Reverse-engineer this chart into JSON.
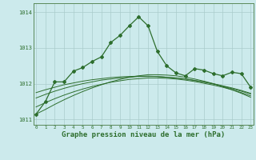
{
  "title": "Graphe pression niveau de la mer (hPa)",
  "background_color": "#cceaec",
  "grid_color": "#aacccc",
  "line_color": "#2d6e2d",
  "hours": [
    0,
    1,
    2,
    3,
    4,
    5,
    6,
    7,
    8,
    9,
    10,
    11,
    12,
    13,
    14,
    15,
    16,
    17,
    18,
    19,
    20,
    21,
    22,
    23
  ],
  "pressure_main": [
    1011.15,
    1011.5,
    1012.05,
    1012.05,
    1012.35,
    1012.45,
    1012.62,
    1012.75,
    1013.15,
    1013.35,
    1013.62,
    1013.87,
    1013.62,
    1012.9,
    1012.5,
    1012.3,
    1012.22,
    1012.42,
    1012.38,
    1012.28,
    1012.22,
    1012.32,
    1012.28,
    1011.9
  ],
  "smooth_a": [
    1011.15,
    1011.28,
    1011.42,
    1011.55,
    1011.67,
    1011.78,
    1011.88,
    1011.97,
    1012.05,
    1012.12,
    1012.18,
    1012.22,
    1012.25,
    1012.25,
    1012.24,
    1012.22,
    1012.18,
    1012.13,
    1012.07,
    1012.0,
    1011.92,
    1011.83,
    1011.73,
    1011.62
  ],
  "smooth_b": [
    1011.35,
    1011.47,
    1011.58,
    1011.68,
    1011.77,
    1011.85,
    1011.92,
    1011.98,
    1012.04,
    1012.08,
    1012.12,
    1012.14,
    1012.16,
    1012.16,
    1012.15,
    1012.13,
    1012.1,
    1012.06,
    1012.01,
    1011.96,
    1011.9,
    1011.83,
    1011.75,
    1011.66
  ],
  "smooth_c": [
    1011.6,
    1011.7,
    1011.79,
    1011.87,
    1011.94,
    1012.0,
    1012.05,
    1012.1,
    1012.13,
    1012.16,
    1012.18,
    1012.2,
    1012.2,
    1012.2,
    1012.18,
    1012.16,
    1012.13,
    1012.09,
    1012.04,
    1011.99,
    1011.93,
    1011.86,
    1011.79,
    1011.71
  ],
  "smooth_d": [
    1011.75,
    1011.83,
    1011.9,
    1011.97,
    1012.02,
    1012.07,
    1012.11,
    1012.14,
    1012.17,
    1012.19,
    1012.2,
    1012.21,
    1012.21,
    1012.2,
    1012.18,
    1012.16,
    1012.13,
    1012.09,
    1012.05,
    1012.0,
    1011.94,
    1011.88,
    1011.81,
    1011.73
  ],
  "ylim": [
    1010.85,
    1014.25
  ],
  "yticks": [
    1011,
    1012,
    1013,
    1014
  ],
  "title_fontsize": 6.5
}
